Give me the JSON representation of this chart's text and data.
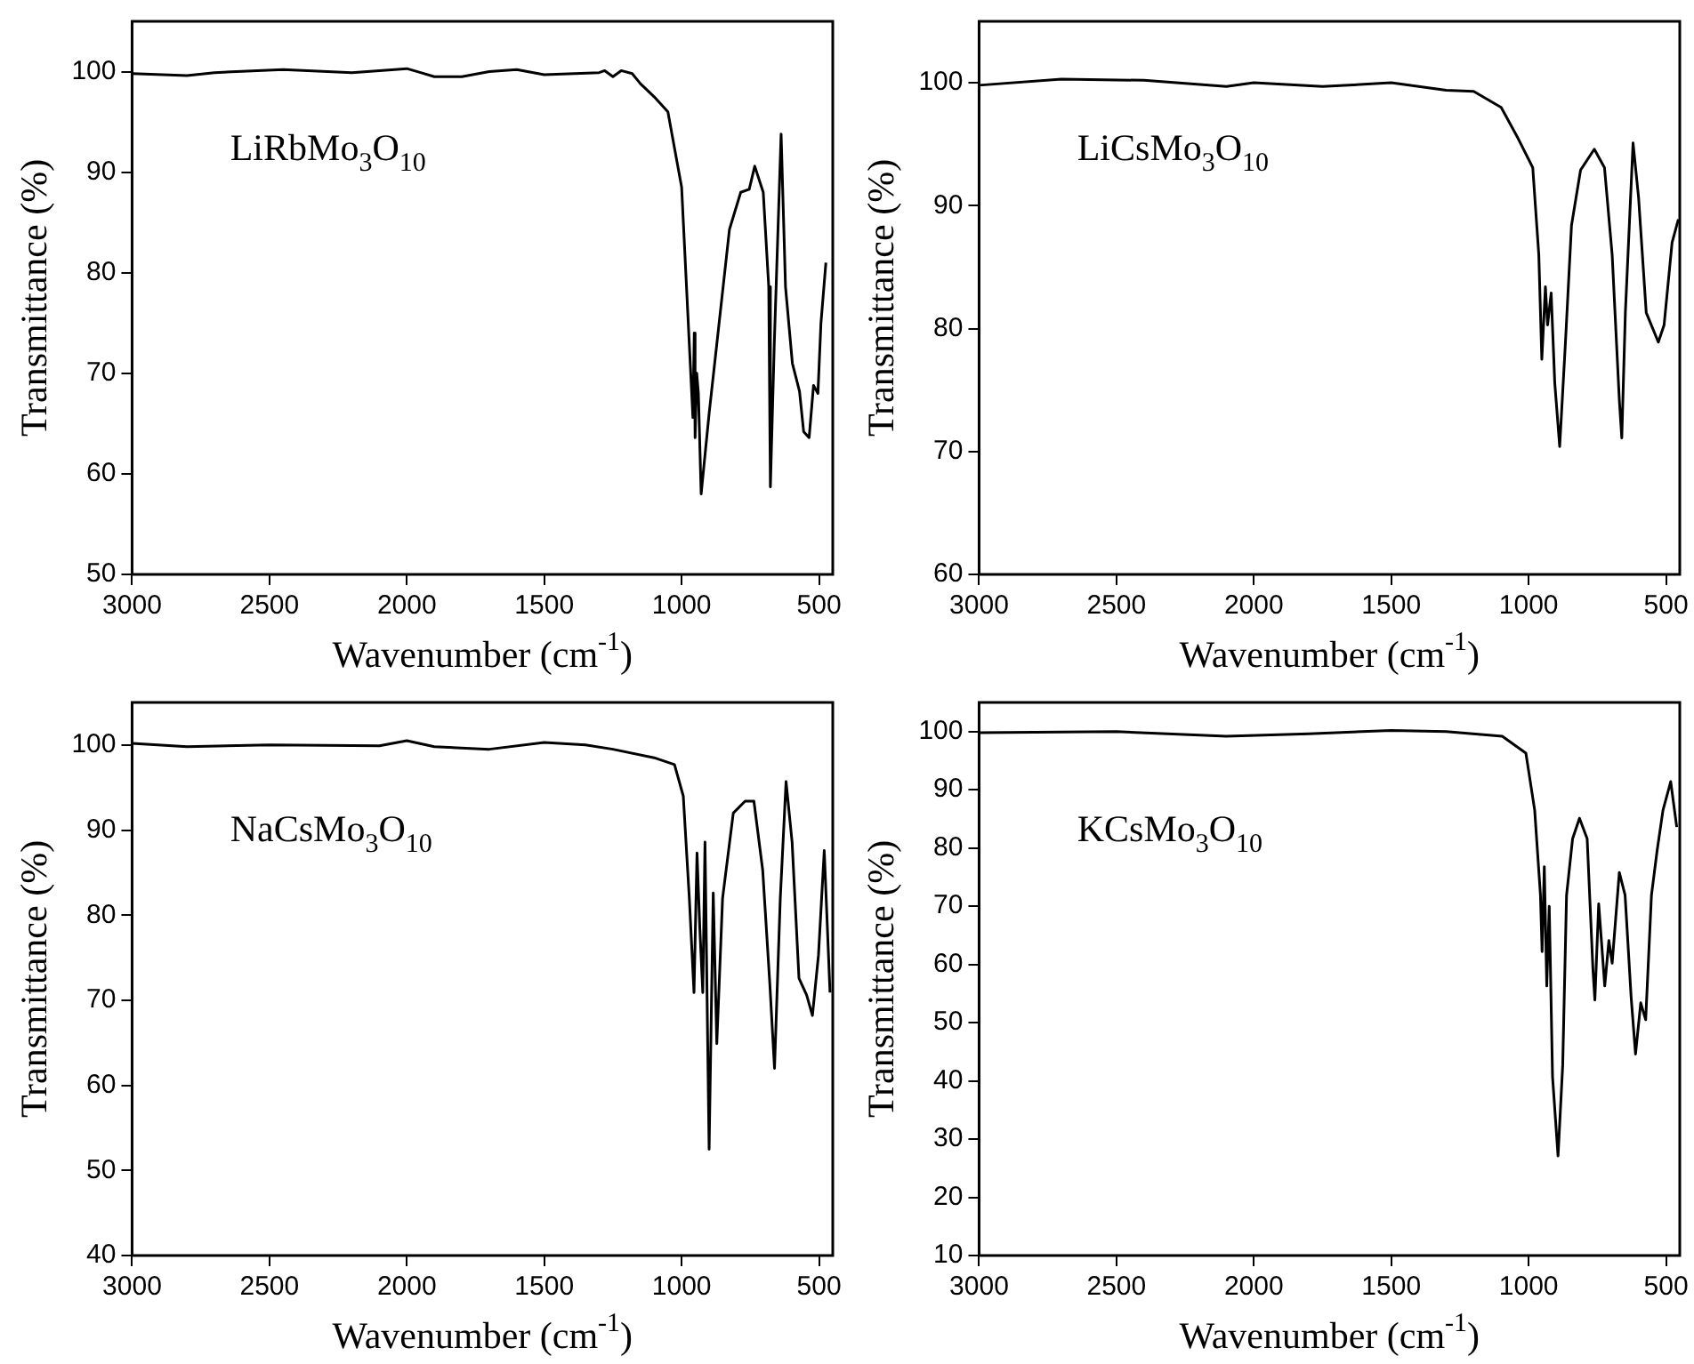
{
  "chart_data": [
    {
      "type": "line",
      "annotations": [
        "LiRbMo$_{3}$O$_{10}$"
      ],
      "xlabel": "Wavenumber (cm$^{-1}$)",
      "ylabel": "Transmittance (%)",
      "color": "#000000",
      "grid": false,
      "xlim": [
        3000,
        450
      ],
      "ylim": [
        50,
        105
      ],
      "xticks": [
        3000,
        2500,
        2000,
        1500,
        1000,
        500
      ],
      "yticks": [
        50,
        60,
        70,
        80,
        90,
        100
      ],
      "x": [
        3000,
        2800,
        2700,
        2450,
        2200,
        2000,
        1950,
        1900,
        1800,
        1700,
        1600,
        1500,
        1300,
        1280,
        1250,
        1220,
        1180,
        1150,
        1100,
        1050,
        1000,
        959,
        954,
        951,
        945,
        939,
        929,
        900,
        826,
        785,
        754,
        734,
        703,
        683,
        677,
        663,
        638,
        622,
        597,
        571,
        556,
        536,
        520,
        504,
        493,
        475
      ],
      "values": [
        99.8,
        99.6,
        99.9,
        100.2,
        99.9,
        100.3,
        99.9,
        99.5,
        99.5,
        100,
        100.2,
        99.7,
        99.9,
        100.1,
        99.5,
        100.1,
        99.8,
        98.8,
        97.5,
        96,
        88.5,
        65.6,
        74,
        63.6,
        70,
        68,
        58,
        66,
        84.3,
        88,
        88.3,
        90.6,
        88,
        78.6,
        58.7,
        72.8,
        93.8,
        78.6,
        71,
        68.2,
        64.2,
        63.6,
        68.8,
        68,
        75,
        81
      ]
    },
    {
      "type": "line",
      "annotations": [
        "LiCsMo$_{3}$O$_{10}$"
      ],
      "xlabel": "Wavenumber (cm$^{-1}$)",
      "ylabel": "Transmittance (%)",
      "color": "#000000",
      "grid": false,
      "xlim": [
        3000,
        450
      ],
      "ylim": [
        60,
        105
      ],
      "xticks": [
        3000,
        2500,
        2000,
        1500,
        1000,
        500
      ],
      "yticks": [
        60,
        70,
        80,
        90,
        100
      ],
      "x": [
        3000,
        2700,
        2400,
        2100,
        2000,
        1750,
        1500,
        1300,
        1200,
        1100,
        1039,
        985,
        963,
        952,
        939,
        931,
        918,
        905,
        887,
        866,
        844,
        811,
        761,
        724,
        696,
        670,
        661,
        648,
        620,
        600,
        572,
        528,
        507,
        478,
        455
      ],
      "values": [
        99.8,
        100.3,
        100.2,
        99.7,
        100,
        99.7,
        100,
        99.4,
        99.3,
        98,
        95.5,
        93.1,
        86,
        77.5,
        83.4,
        80.3,
        82.9,
        75.6,
        70.4,
        78.9,
        88.4,
        92.9,
        94.6,
        93.1,
        86,
        74.2,
        71.1,
        81.3,
        95.1,
        90.7,
        81.3,
        78.9,
        80.3,
        87,
        88.9
      ]
    },
    {
      "type": "line",
      "annotations": [
        "NaCsMo$_{3}$O$_{10}$"
      ],
      "xlabel": "Wavenumber (cm$^{-1}$)",
      "ylabel": "Transmittance (%)",
      "color": "#000000",
      "grid": false,
      "xlim": [
        3000,
        450
      ],
      "ylim": [
        40,
        105
      ],
      "xticks": [
        3000,
        2500,
        2000,
        1500,
        1000,
        500
      ],
      "yticks": [
        40,
        50,
        60,
        70,
        80,
        90,
        100
      ],
      "x": [
        3000,
        2800,
        2500,
        2100,
        2000,
        1900,
        1700,
        1500,
        1350,
        1250,
        1100,
        1026,
        994,
        972,
        955,
        944,
        934,
        923,
        915,
        900,
        885,
        872,
        851,
        812,
        769,
        737,
        705,
        679,
        662,
        641,
        620,
        598,
        573,
        545,
        524,
        502,
        481,
        460
      ],
      "values": [
        100.2,
        99.8,
        100,
        99.9,
        100.5,
        99.8,
        99.5,
        100.3,
        100,
        99.5,
        98.5,
        97.7,
        94,
        82,
        70.9,
        87.3,
        78.6,
        70.9,
        88.6,
        52.5,
        82.6,
        64.9,
        82,
        92,
        93.4,
        93.4,
        85.3,
        71.9,
        62,
        82,
        95.7,
        88.6,
        72.6,
        70.6,
        68.2,
        75.3,
        87.6,
        70.9
      ]
    },
    {
      "type": "line",
      "annotations": [
        "KCsMo$_{3}$O$_{10}$"
      ],
      "xlabel": "Wavenumber (cm$^{-1}$)",
      "ylabel": "Transmittance (%)",
      "color": "#000000",
      "grid": false,
      "xlim": [
        3000,
        450
      ],
      "ylim": [
        10,
        105
      ],
      "xticks": [
        3000,
        2500,
        2000,
        1500,
        1000,
        500
      ],
      "yticks": [
        10,
        20,
        30,
        40,
        50,
        60,
        70,
        80,
        90,
        100
      ],
      "x": [
        3000,
        2500,
        2100,
        1800,
        1500,
        1300,
        1096,
        1010,
        978,
        957,
        951,
        943,
        934,
        925,
        913,
        893,
        876,
        862,
        840,
        815,
        787,
        766,
        759,
        745,
        723,
        708,
        696,
        670,
        649,
        627,
        611,
        592,
        574,
        553,
        532,
        511,
        483,
        461
      ],
      "values": [
        99.8,
        100,
        99.2,
        99.6,
        100.2,
        100,
        99.2,
        96.3,
        86.5,
        71.9,
        62.2,
        76.8,
        56.3,
        70,
        40.7,
        27.1,
        42.7,
        71.9,
        81.6,
        85.1,
        81.6,
        59.2,
        53.9,
        70.4,
        56.3,
        64.1,
        60.2,
        75.8,
        71.9,
        54.4,
        44.6,
        53.4,
        50.5,
        71.9,
        79.7,
        86.5,
        91.4,
        83.6
      ]
    }
  ]
}
